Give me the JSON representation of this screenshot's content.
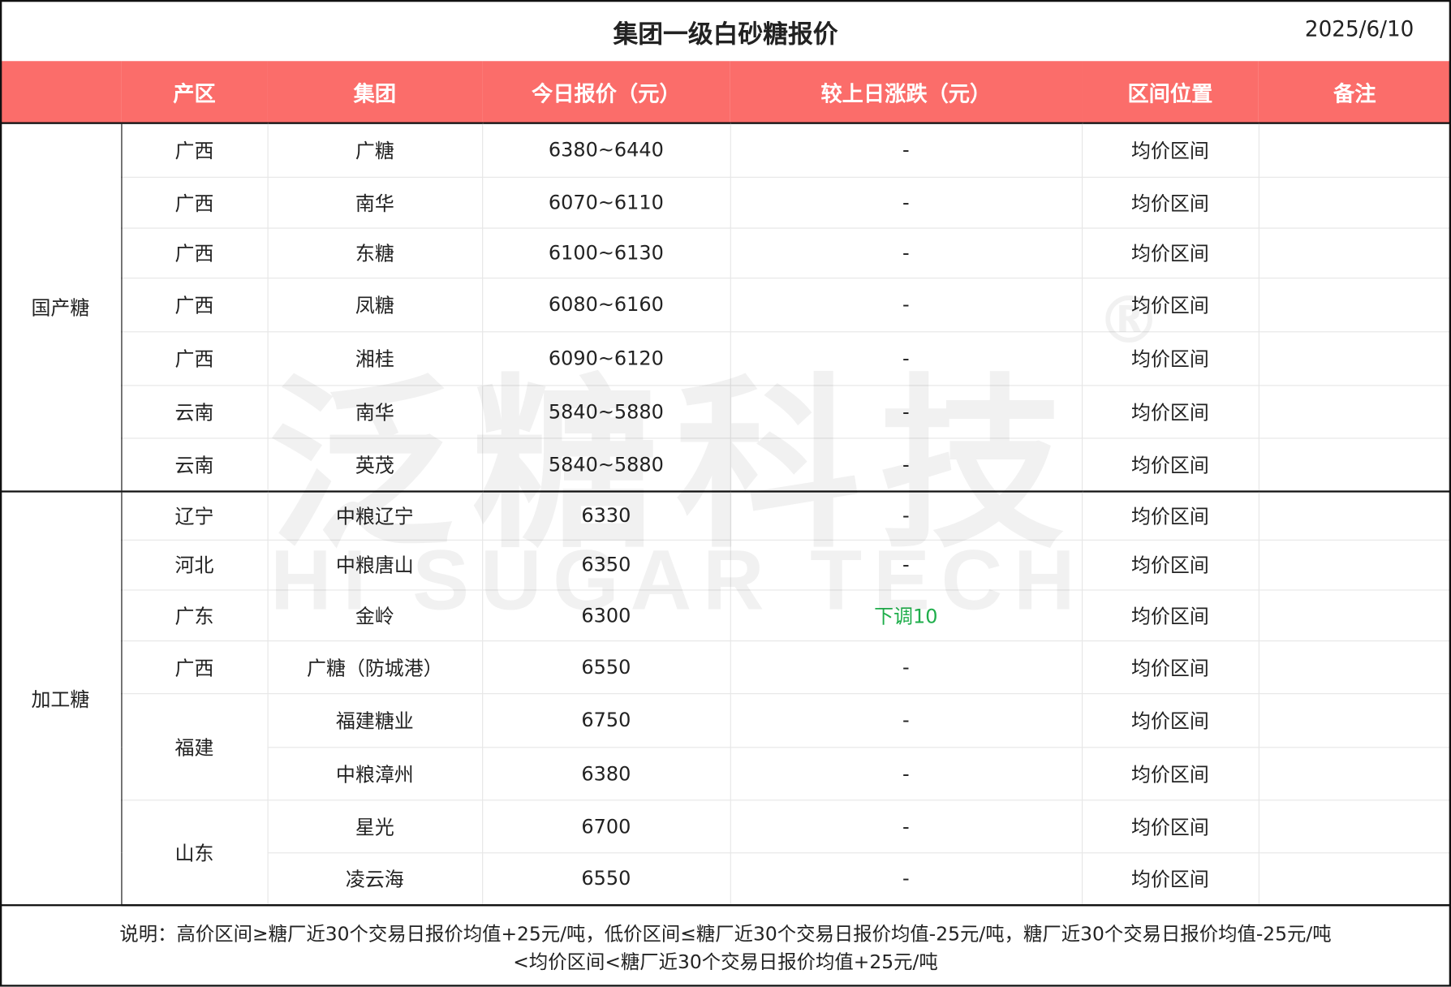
{
  "title": "集团一级白砂糖报价",
  "date": "2025/6/10",
  "header_color": "#fb6d6a",
  "change_down_color": "#1fae4b",
  "columns": [
    "产区",
    "集团",
    "今日报价（元）",
    "较上日涨跌（元）",
    "区间位置",
    "备注"
  ],
  "categories": [
    "国产糖",
    "加工糖"
  ],
  "rows": [
    {
      "region": "广西",
      "group": "广糖",
      "price": "6380~6440",
      "change": "-",
      "position": "均价区间",
      "remark": ""
    },
    {
      "region": "广西",
      "group": "南华",
      "price": "6070~6110",
      "change": "-",
      "position": "均价区间",
      "remark": ""
    },
    {
      "region": "广西",
      "group": "东糖",
      "price": "6100~6130",
      "change": "-",
      "position": "均价区间",
      "remark": ""
    },
    {
      "region": "广西",
      "group": "凤糖",
      "price": "6080~6160",
      "change": "-",
      "position": "均价区间",
      "remark": ""
    },
    {
      "region": "广西",
      "group": "湘桂",
      "price": "6090~6120",
      "change": "-",
      "position": "均价区间",
      "remark": ""
    },
    {
      "region": "云南",
      "group": "南华",
      "price": "5840~5880",
      "change": "-",
      "position": "均价区间",
      "remark": ""
    },
    {
      "region": "云南",
      "group": "英茂",
      "price": "5840~5880",
      "change": "-",
      "position": "均价区间",
      "remark": ""
    },
    {
      "region": "辽宁",
      "group": "中粮辽宁",
      "price": "6330",
      "change": "-",
      "position": "均价区间",
      "remark": ""
    },
    {
      "region": "河北",
      "group": "中粮唐山",
      "price": "6350",
      "change": "-",
      "position": "均价区间",
      "remark": ""
    },
    {
      "region": "广东",
      "group": "金岭",
      "price": "6300",
      "change": "下调10",
      "position": "均价区间",
      "remark": ""
    },
    {
      "region": "广西",
      "group": "广糖（防城港）",
      "price": "6550",
      "change": "-",
      "position": "均价区间",
      "remark": ""
    },
    {
      "region": "福建",
      "group": "福建糖业",
      "price": "6750",
      "change": "-",
      "position": "均价区间",
      "remark": ""
    },
    {
      "region": "福建",
      "group": "中粮漳州",
      "price": "6380",
      "change": "-",
      "position": "均价区间",
      "remark": ""
    },
    {
      "region": "山东",
      "group": "星光",
      "price": "6700",
      "change": "-",
      "position": "均价区间",
      "remark": ""
    },
    {
      "region": "山东",
      "group": "凌云海",
      "price": "6550",
      "change": "-",
      "position": "均价区间",
      "remark": ""
    }
  ],
  "note_line1": "说明：高价区间≥糖厂近30个交易日报价均值+25元/吨，低价区间≤糖厂近30个交易日报价均值-25元/吨，糖厂近30个交易日报价均值-25元/吨",
  "note_line2": "<均价区间<糖厂近30个交易日报价均值+25元/吨",
  "watermark": {
    "cn": "泛糖科技",
    "en": "HI SUGAR TECH",
    "mark": "®"
  }
}
